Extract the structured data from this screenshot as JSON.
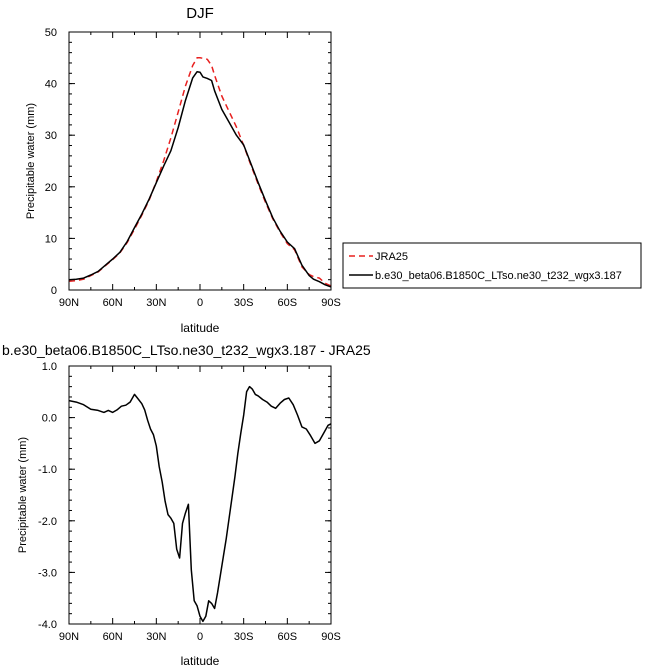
{
  "chart_data": [
    {
      "type": "line",
      "title": "DJF",
      "xlabel": "latitude",
      "ylabel": "Precipitable water (mm)",
      "xlim": [
        90,
        -90
      ],
      "ylim": [
        0,
        50
      ],
      "x_ticks": [
        {
          "value": 90,
          "label": "90N"
        },
        {
          "value": 60,
          "label": "60N"
        },
        {
          "value": 30,
          "label": "30N"
        },
        {
          "value": 0,
          "label": "0"
        },
        {
          "value": -30,
          "label": "30S"
        },
        {
          "value": -60,
          "label": "60S"
        },
        {
          "value": -90,
          "label": "90S"
        }
      ],
      "y_ticks": [
        {
          "value": 0,
          "label": "0"
        },
        {
          "value": 10,
          "label": "10"
        },
        {
          "value": 20,
          "label": "20"
        },
        {
          "value": 30,
          "label": "30"
        },
        {
          "value": 40,
          "label": "40"
        },
        {
          "value": 50,
          "label": "50"
        }
      ],
      "legend_position": "right",
      "series": [
        {
          "name": "JRA25",
          "color": "#e8201f",
          "dash": "dashed",
          "x": [
            90,
            85,
            80,
            75,
            70,
            65,
            60,
            55,
            50,
            45,
            40,
            35,
            30,
            25,
            20,
            15,
            10,
            5,
            2,
            0,
            -2,
            -5,
            -8,
            -10,
            -15,
            -20,
            -25,
            -30,
            -35,
            -40,
            -45,
            -50,
            -55,
            -60,
            -65,
            -70,
            -75,
            -78,
            -82,
            -86,
            -90
          ],
          "y": [
            1.7,
            1.8,
            2.1,
            2.8,
            3.5,
            4.7,
            5.9,
            7.2,
            9.2,
            11.8,
            14.5,
            17.4,
            21.0,
            25.0,
            29.5,
            34.5,
            39.5,
            43.5,
            45.0,
            45.0,
            44.9,
            44.7,
            43.5,
            41.6,
            37.6,
            34.6,
            31.6,
            28.0,
            24.2,
            20.5,
            17.0,
            13.8,
            11.2,
            9.0,
            7.8,
            4.5,
            3.0,
            2.6,
            2.3,
            1.3,
            0.8
          ]
        },
        {
          "name": "b.e30_beta06.B1850C_LTso.ne30_t232_wgx3.187",
          "color": "#000000",
          "dash": "solid",
          "x": [
            90,
            85,
            80,
            75,
            70,
            65,
            60,
            55,
            50,
            45,
            40,
            35,
            30,
            25,
            20,
            15,
            10,
            5,
            2,
            0,
            -2,
            -5,
            -8,
            -10,
            -15,
            -20,
            -25,
            -30,
            -35,
            -40,
            -45,
            -50,
            -55,
            -60,
            -65,
            -70,
            -75,
            -78,
            -82,
            -86,
            -90
          ],
          "y": [
            2.0,
            2.1,
            2.3,
            2.9,
            3.6,
            4.8,
            6.0,
            7.3,
            9.4,
            12.1,
            14.7,
            17.6,
            20.8,
            24.0,
            27.0,
            31.5,
            36.7,
            41.1,
            42.3,
            42.2,
            41.3,
            41.0,
            40.6,
            38.6,
            35.0,
            32.5,
            30.0,
            28.1,
            24.5,
            20.8,
            17.3,
            14.0,
            11.4,
            9.3,
            8.0,
            4.8,
            2.8,
            2.1,
            1.6,
            1.0,
            0.6
          ]
        }
      ]
    },
    {
      "type": "line",
      "title": "b.e30_beta06.B1850C_LTso.ne30_t232_wgx3.187 - JRA25",
      "xlabel": "latitude",
      "ylabel": "Precipitable water (mm)",
      "xlim": [
        90,
        -90
      ],
      "ylim": [
        -4,
        1
      ],
      "x_ticks": [
        {
          "value": 90,
          "label": "90N"
        },
        {
          "value": 60,
          "label": "60N"
        },
        {
          "value": 30,
          "label": "30N"
        },
        {
          "value": 0,
          "label": "0"
        },
        {
          "value": -30,
          "label": "30S"
        },
        {
          "value": -60,
          "label": "60S"
        },
        {
          "value": -90,
          "label": "90S"
        }
      ],
      "y_ticks": [
        {
          "value": -4,
          "label": "-4.0"
        },
        {
          "value": -3,
          "label": "-3.0"
        },
        {
          "value": -2,
          "label": "-2.0"
        },
        {
          "value": -1,
          "label": "-1.0"
        },
        {
          "value": 0,
          "label": "0.0"
        },
        {
          "value": 1,
          "label": "1.0"
        }
      ],
      "series": [
        {
          "name": "",
          "color": "#000000",
          "dash": "solid",
          "x": [
            90,
            85,
            80,
            75,
            70,
            66,
            63,
            60,
            57,
            54,
            51,
            48,
            45,
            43,
            40,
            38,
            36,
            34,
            32,
            30,
            28,
            26,
            24,
            22,
            20,
            18,
            16,
            14,
            12,
            10,
            8,
            6,
            4,
            2,
            0,
            -2,
            -4,
            -6,
            -8,
            -10,
            -12,
            -14,
            -16,
            -18,
            -20,
            -22,
            -24,
            -26,
            -28,
            -30,
            -32,
            -34,
            -36,
            -38,
            -40,
            -43,
            -46,
            -49,
            -52,
            -55,
            -58,
            -61,
            -64,
            -67,
            -70,
            -73,
            -76,
            -79,
            -82,
            -85,
            -88,
            -90
          ],
          "y": [
            0.33,
            0.3,
            0.25,
            0.16,
            0.14,
            0.1,
            0.14,
            0.1,
            0.15,
            0.22,
            0.24,
            0.3,
            0.45,
            0.38,
            0.27,
            0.15,
            -0.05,
            -0.22,
            -0.33,
            -0.55,
            -0.95,
            -1.25,
            -1.62,
            -1.88,
            -1.95,
            -2.05,
            -2.55,
            -2.72,
            -2.05,
            -1.85,
            -1.68,
            -2.95,
            -3.55,
            -3.65,
            -3.85,
            -3.95,
            -3.85,
            -3.55,
            -3.6,
            -3.7,
            -3.4,
            -3.05,
            -2.7,
            -2.35,
            -1.95,
            -1.55,
            -1.15,
            -0.7,
            -0.3,
            0.05,
            0.5,
            0.6,
            0.55,
            0.45,
            0.42,
            0.35,
            0.3,
            0.22,
            0.18,
            0.28,
            0.35,
            0.38,
            0.25,
            0.05,
            -0.18,
            -0.22,
            -0.35,
            -0.5,
            -0.45,
            -0.3,
            -0.15,
            -0.12
          ]
        }
      ]
    }
  ]
}
